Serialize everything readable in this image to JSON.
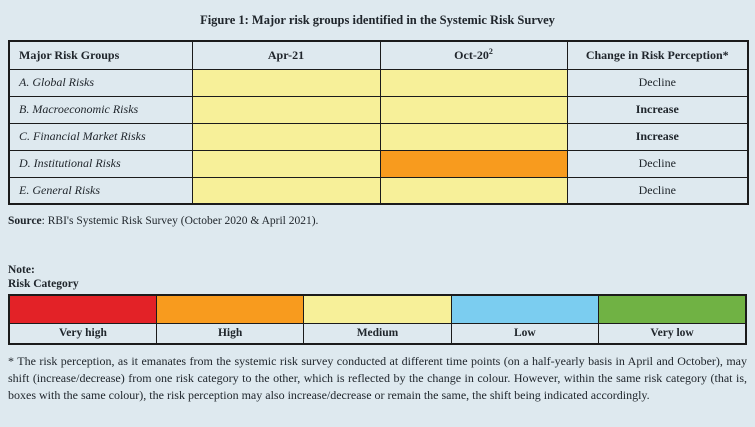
{
  "page": {
    "title": "Figure 1: Major risk groups identified in the Systemic Risk Survey"
  },
  "table": {
    "headers": {
      "groups": "Major Risk Groups",
      "apr21": "Apr-21",
      "oct20": "Oct-20",
      "oct20_sup": "2",
      "change": "Change in Risk Perception*"
    },
    "rows": [
      {
        "label": "A. Global Risks",
        "apr21_level": "Medium",
        "apr21_color": "#f7f099",
        "oct20_level": "Medium",
        "oct20_color": "#f7f099",
        "change": "Decline",
        "change_bold": false
      },
      {
        "label": "B. Macroeconomic Risks",
        "apr21_level": "Medium",
        "apr21_color": "#f7f099",
        "oct20_level": "Medium",
        "oct20_color": "#f7f099",
        "change": "Increase",
        "change_bold": true
      },
      {
        "label": "C. Financial Market Risks",
        "apr21_level": "Medium",
        "apr21_color": "#f7f099",
        "oct20_level": "Medium",
        "oct20_color": "#f7f099",
        "change": "Increase",
        "change_bold": true
      },
      {
        "label": "D. Institutional Risks",
        "apr21_level": "Medium",
        "apr21_color": "#f7f099",
        "oct20_level": "High",
        "oct20_color": "#f89b1e",
        "change": "Decline",
        "change_bold": false
      },
      {
        "label": "E. General Risks",
        "apr21_level": "Medium",
        "apr21_color": "#f7f099",
        "oct20_level": "Medium",
        "oct20_color": "#f7f099",
        "change": "Decline",
        "change_bold": false
      }
    ]
  },
  "source": {
    "label": "Source",
    "text": ": RBI's Systemic Risk Survey (October 2020 & April 2021)."
  },
  "note": {
    "line1": "Note:",
    "line2": "Risk Category"
  },
  "legend": {
    "items": [
      {
        "label": "Very high",
        "color": "#e32227"
      },
      {
        "label": "High",
        "color": "#f89b1e"
      },
      {
        "label": "Medium",
        "color": "#f7f099"
      },
      {
        "label": "Low",
        "color": "#7bcdf0"
      },
      {
        "label": "Very low",
        "color": "#70b244"
      }
    ]
  },
  "footnote": "* The risk perception, as it emanates from the systemic risk survey conducted at different time points (on a half-yearly basis in April and October), may shift (increase/decrease) from one risk category to the other, which is reflected by the change in colour. However, within the same risk category (that is, boxes with the same colour), the risk perception may also increase/decrease or remain the same, the shift being indicated accordingly.",
  "colors": {
    "background": "#dee9ef",
    "border": "#1b1b1b",
    "text": "#20262c",
    "medium_yellow": "#f7f099",
    "high_orange": "#f89b1e",
    "very_high_red": "#e32227",
    "low_blue": "#7bcdf0",
    "very_low_green": "#70b244"
  },
  "chart_data": {
    "type": "table",
    "title": "Figure 1: Major risk groups identified in the Systemic Risk Survey",
    "columns": [
      "Major Risk Groups",
      "Apr-21",
      "Oct-20",
      "Change in Risk Perception*"
    ],
    "rows": [
      {
        "group": "A. Global Risks",
        "apr21": "Medium",
        "oct20": "Medium",
        "change": "Decline"
      },
      {
        "group": "B. Macroeconomic Risks",
        "apr21": "Medium",
        "oct20": "Medium",
        "change": "Increase"
      },
      {
        "group": "C. Financial Market Risks",
        "apr21": "Medium",
        "oct20": "Medium",
        "change": "Increase"
      },
      {
        "group": "D. Institutional Risks",
        "apr21": "Medium",
        "oct20": "High",
        "change": "Decline"
      },
      {
        "group": "E. General Risks",
        "apr21": "Medium",
        "oct20": "Medium",
        "change": "Decline"
      }
    ],
    "risk_scale": [
      "Very high",
      "High",
      "Medium",
      "Low",
      "Very low"
    ]
  }
}
